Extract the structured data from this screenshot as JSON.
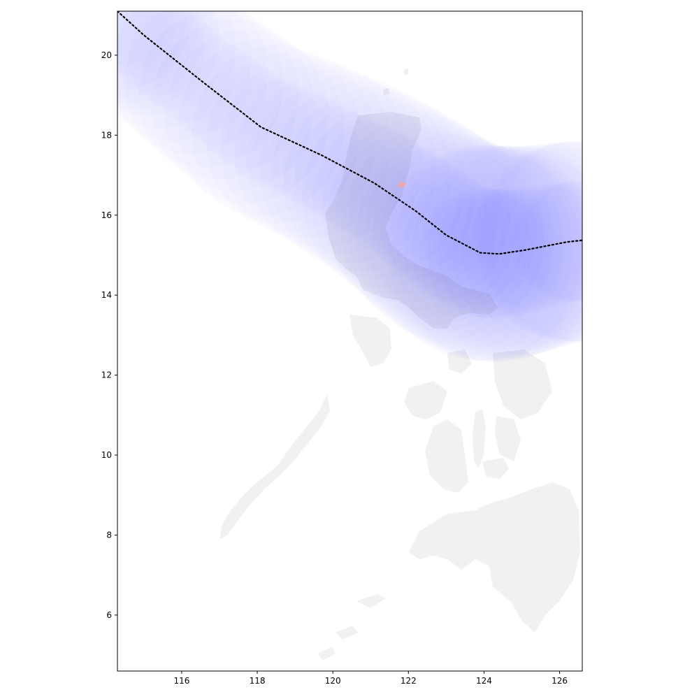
{
  "chart_data": {
    "type": "map-track",
    "xlim": [
      114.3,
      126.6
    ],
    "ylim": [
      4.6,
      21.1
    ],
    "x_ticks": [
      116,
      118,
      120,
      122,
      124,
      126
    ],
    "y_ticks": [
      6,
      8,
      10,
      12,
      14,
      16,
      18,
      20
    ],
    "x_tick_labels": [
      "116",
      "118",
      "120",
      "122",
      "124",
      "126"
    ],
    "y_tick_labels": [
      "6",
      "8",
      "10",
      "12",
      "14",
      "16",
      "18",
      "20"
    ],
    "grid": false,
    "track": {
      "style": "dotted",
      "color": "#000000",
      "points": [
        [
          114.3,
          21.1
        ],
        [
          115.0,
          20.5
        ],
        [
          116.6,
          19.3
        ],
        [
          118.1,
          18.2
        ],
        [
          119.7,
          17.5
        ],
        [
          121.1,
          16.8
        ],
        [
          122.2,
          16.1
        ],
        [
          123.0,
          15.5
        ],
        [
          123.9,
          15.06
        ],
        [
          124.4,
          15.03
        ],
        [
          125.1,
          15.13
        ],
        [
          126.2,
          15.33
        ],
        [
          126.6,
          15.37
        ]
      ]
    },
    "wind_swath": {
      "color": "#6f6fff",
      "radius_deg": [
        2.0,
        2.0,
        2.1,
        2.2,
        2.3,
        2.4,
        2.5,
        2.6,
        2.7,
        2.7,
        2.6,
        2.5,
        2.5
      ]
    },
    "highlight_area": {
      "color": "#f4a3a3",
      "center": [
        121.8,
        16.75
      ]
    },
    "land_color": "#efefef"
  }
}
